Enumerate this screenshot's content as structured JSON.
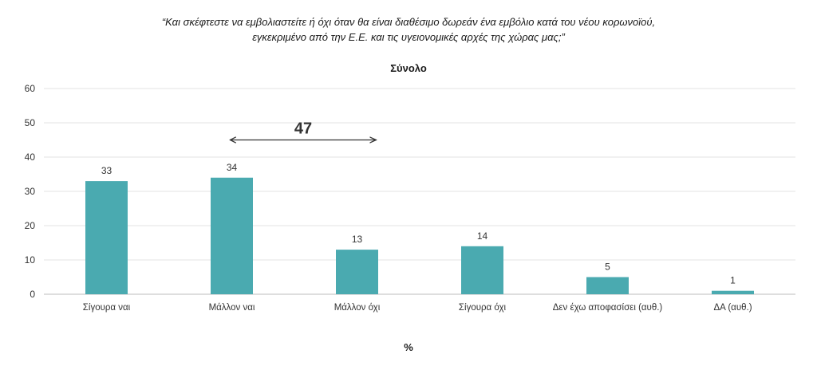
{
  "question": {
    "line1": "“Και σκέφτεστε να εμβολιαστείτε ή όχι όταν θα είναι διαθέσιμο δωρεάν ένα εμβόλιο κατά του νέου κορωνοϊού,",
    "line2": "εγκεκριμένο από την Ε.Ε. και τις υγειονομικές αρχές της χώρας μας;”"
  },
  "colors": {
    "bar": "#4aaab0",
    "grid": "#e3e3e3",
    "axis": "#bdbdbd",
    "arrow": "#333333"
  },
  "chart_data": {
    "type": "bar",
    "title": "Σύνολο",
    "xlabel": "%",
    "ylabel": "",
    "ylim": [
      0,
      60
    ],
    "yticks": [
      "0",
      "10",
      "20",
      "30",
      "40",
      "50",
      "60"
    ],
    "grid": true,
    "categories": [
      "Σίγουρα ναι",
      "Μάλλον ναι",
      "Μάλλον όχι",
      "Σίγουρα όχι",
      "Δεν έχω αποφασίσει (αυθ.)",
      "ΔΑ (αυθ.)"
    ],
    "values": [
      33,
      34,
      13,
      14,
      5,
      1
    ],
    "annotation": {
      "text": "47",
      "from_category": 1,
      "to_category": 2,
      "y": 45
    }
  }
}
